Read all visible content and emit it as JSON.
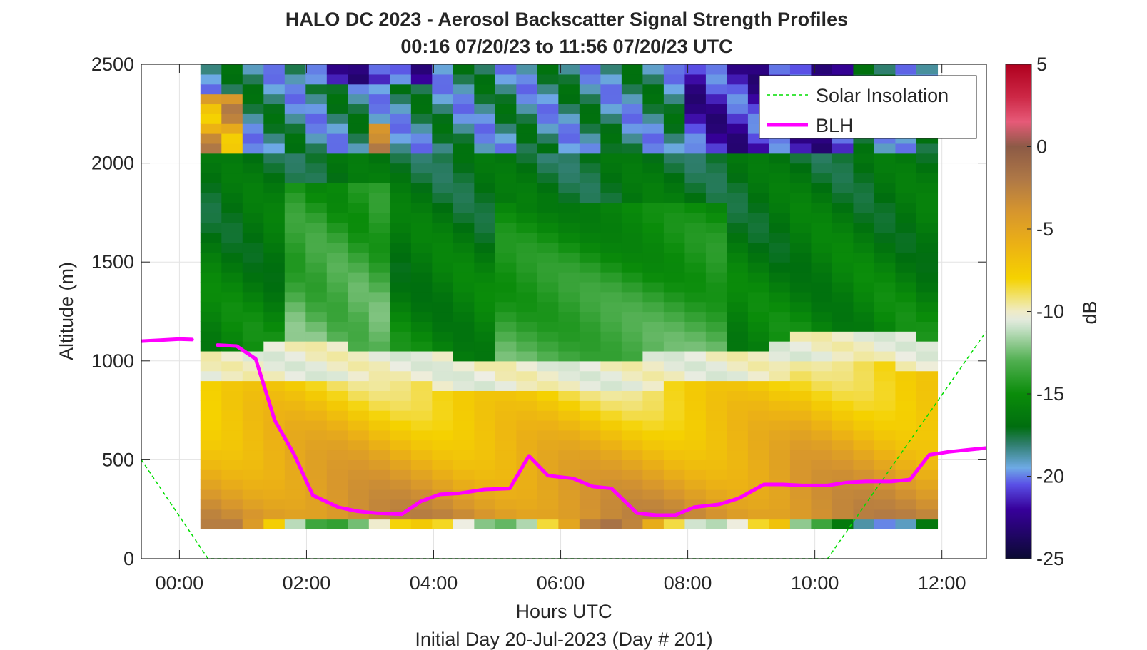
{
  "chart_data": {
    "type": "heatmap",
    "title": "HALO DC 2023 - Aerosol Backscatter Signal Strength Profiles",
    "subtitle": "00:16 07/20/23 to 11:56 07/20/23  UTC",
    "xlabel": "Hours UTC",
    "xlabel2": "Initial Day 20-Jul-2023 (Day # 201)",
    "ylabel": "Altitude (m)",
    "colorbar_label": "dB",
    "xlim": [
      -0.6,
      12.7
    ],
    "ylim": [
      0,
      2500
    ],
    "x_ticks": [
      0,
      2,
      4,
      6,
      8,
      10,
      12
    ],
    "x_tick_labels": [
      "00:00",
      "02:00",
      "04:00",
      "06:00",
      "08:00",
      "10:00",
      "12:00"
    ],
    "y_ticks": [
      0,
      500,
      1000,
      1500,
      2000,
      2500
    ],
    "y_tick_labels": [
      "0",
      "500",
      "1000",
      "1500",
      "2000",
      "2500"
    ],
    "clim": [
      -25,
      5
    ],
    "colorbar_ticks": [
      5,
      0,
      -5,
      -10,
      -15,
      -20,
      -25
    ],
    "colorbar_tick_labels": [
      "5",
      "0",
      "-5",
      "-10",
      "-15",
      "-20",
      "-25"
    ],
    "grid": true,
    "legend_position": "top-right",
    "data_time_range_hours": [
      0.33,
      11.93
    ],
    "data_altitude_range_m": [
      150,
      2500
    ],
    "blh_color": "#ff00ff",
    "solar_color": "#00dd00",
    "series": [
      {
        "name": "Solar Insolation",
        "style": "dashed",
        "x": [
          -0.6,
          0.45,
          10.2,
          12.7
        ],
        "y": [
          500,
          0,
          0,
          1150
        ]
      },
      {
        "name": "BLH",
        "style": "solid",
        "segments": [
          {
            "x": [
              -0.6,
              -0.3,
              0.0,
              0.2
            ],
            "y": [
              1100,
              1105,
              1110,
              1108
            ]
          },
          {
            "x": [
              0.6,
              0.9,
              1.2,
              1.5,
              1.8,
              2.1,
              2.5,
              2.8,
              3.1,
              3.5,
              3.8,
              4.1,
              4.4,
              4.8,
              5.2,
              5.5,
              5.8,
              6.2,
              6.5,
              6.8,
              7.2,
              7.5,
              7.8,
              8.1,
              8.5,
              8.8,
              9.2,
              9.5,
              9.8,
              10.2,
              10.5,
              10.8,
              11.2,
              11.5,
              11.8,
              12.1,
              12.4,
              12.7
            ],
            "y": [
              1080,
              1075,
              1010,
              700,
              530,
              320,
              260,
              240,
              230,
              225,
              290,
              325,
              330,
              350,
              355,
              520,
              420,
              405,
              365,
              355,
              230,
              220,
              220,
              260,
              275,
              305,
              375,
              375,
              370,
              370,
              385,
              390,
              390,
              400,
              525,
              540,
              550,
              560
            ]
          }
        ]
      }
    ]
  }
}
